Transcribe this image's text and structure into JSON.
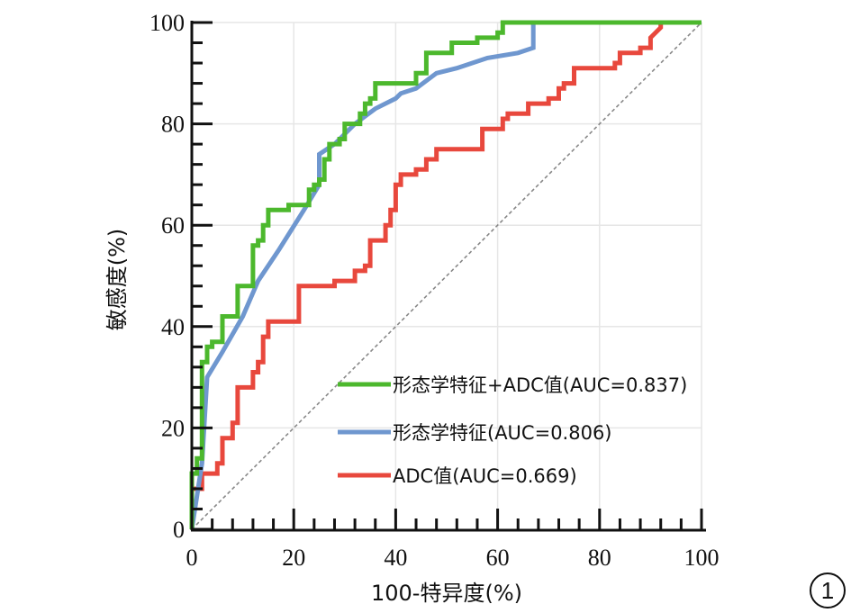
{
  "chart_data": {
    "type": "line",
    "title": "",
    "xlabel": "100-特异度(%)",
    "ylabel": "敏感度(%)",
    "xlim": [
      0,
      100
    ],
    "ylim": [
      0,
      100
    ],
    "x_ticks": [
      0,
      20,
      40,
      60,
      80,
      100
    ],
    "y_ticks": [
      0,
      20,
      40,
      60,
      80,
      100
    ],
    "x_tick_labels": [
      "0",
      "20",
      "40",
      "60",
      "80",
      "100"
    ],
    "y_tick_labels": [
      "0",
      "20",
      "40",
      "60",
      "80",
      "100"
    ],
    "grid": true,
    "legend_position": "bottom-right",
    "reference_line": {
      "name": "chance",
      "style": "dashed",
      "color": "#888888",
      "points": [
        [
          0,
          0
        ],
        [
          100,
          100
        ]
      ]
    },
    "series": [
      {
        "name": "形态学特征+ADC值(AUC=0.837)",
        "auc": 0.837,
        "color": "#4cb82d",
        "points": [
          [
            0,
            0
          ],
          [
            0,
            11
          ],
          [
            1,
            11
          ],
          [
            1,
            14
          ],
          [
            2,
            14
          ],
          [
            2,
            33
          ],
          [
            3,
            33
          ],
          [
            3,
            36
          ],
          [
            4,
            36
          ],
          [
            4,
            37
          ],
          [
            6,
            37
          ],
          [
            6,
            42
          ],
          [
            9,
            42
          ],
          [
            9,
            48
          ],
          [
            12,
            48
          ],
          [
            12,
            56
          ],
          [
            13,
            56
          ],
          [
            13,
            57
          ],
          [
            14,
            57
          ],
          [
            14,
            60
          ],
          [
            15,
            60
          ],
          [
            15,
            63
          ],
          [
            19,
            63
          ],
          [
            19,
            64
          ],
          [
            23,
            64
          ],
          [
            23,
            67
          ],
          [
            24,
            67
          ],
          [
            24,
            68
          ],
          [
            25,
            68
          ],
          [
            25,
            69
          ],
          [
            26,
            69
          ],
          [
            26,
            73
          ],
          [
            27,
            73
          ],
          [
            27,
            76
          ],
          [
            29,
            76
          ],
          [
            29,
            77
          ],
          [
            30,
            77
          ],
          [
            30,
            80
          ],
          [
            33,
            80
          ],
          [
            33,
            82
          ],
          [
            34,
            82
          ],
          [
            34,
            84
          ],
          [
            35,
            84
          ],
          [
            35,
            85
          ],
          [
            36,
            85
          ],
          [
            36,
            88
          ],
          [
            44,
            88
          ],
          [
            44,
            90
          ],
          [
            46,
            90
          ],
          [
            46,
            94
          ],
          [
            51,
            94
          ],
          [
            51,
            96
          ],
          [
            56,
            96
          ],
          [
            56,
            97
          ],
          [
            60,
            97
          ],
          [
            60,
            98
          ],
          [
            61,
            98
          ],
          [
            61,
            100
          ],
          [
            100,
            100
          ]
        ]
      },
      {
        "name": "形态学特征(AUC=0.806)",
        "auc": 0.806,
        "color": "#6f97cf",
        "points": [
          [
            0,
            0
          ],
          [
            2,
            13
          ],
          [
            3,
            30
          ],
          [
            6,
            35
          ],
          [
            10,
            42
          ],
          [
            13,
            49
          ],
          [
            17,
            55
          ],
          [
            22,
            63
          ],
          [
            25,
            68
          ],
          [
            25,
            74
          ],
          [
            28,
            76
          ],
          [
            32,
            80
          ],
          [
            36,
            83
          ],
          [
            40,
            85
          ],
          [
            41,
            86
          ],
          [
            44,
            87
          ],
          [
            48,
            90
          ],
          [
            52,
            91
          ],
          [
            58,
            93
          ],
          [
            64,
            94
          ],
          [
            67,
            95
          ],
          [
            67,
            100
          ],
          [
            100,
            100
          ]
        ]
      },
      {
        "name": "ADC值(AUC=0.669)",
        "auc": 0.669,
        "color": "#e8483d",
        "points": [
          [
            0,
            0
          ],
          [
            0,
            8
          ],
          [
            2,
            8
          ],
          [
            2,
            11
          ],
          [
            5,
            11
          ],
          [
            5,
            13
          ],
          [
            6,
            13
          ],
          [
            6,
            18
          ],
          [
            8,
            18
          ],
          [
            8,
            21
          ],
          [
            9,
            21
          ],
          [
            9,
            28
          ],
          [
            12,
            28
          ],
          [
            12,
            31
          ],
          [
            13,
            31
          ],
          [
            13,
            33
          ],
          [
            14,
            33
          ],
          [
            14,
            38
          ],
          [
            15,
            38
          ],
          [
            15,
            41
          ],
          [
            21,
            41
          ],
          [
            21,
            48
          ],
          [
            28,
            48
          ],
          [
            28,
            49
          ],
          [
            32,
            49
          ],
          [
            32,
            51
          ],
          [
            34,
            51
          ],
          [
            34,
            52
          ],
          [
            35,
            52
          ],
          [
            35,
            57
          ],
          [
            38,
            57
          ],
          [
            38,
            60
          ],
          [
            39,
            60
          ],
          [
            39,
            63
          ],
          [
            40,
            63
          ],
          [
            40,
            68
          ],
          [
            41,
            68
          ],
          [
            41,
            70
          ],
          [
            44,
            70
          ],
          [
            44,
            71
          ],
          [
            46,
            71
          ],
          [
            46,
            73
          ],
          [
            48,
            73
          ],
          [
            48,
            75
          ],
          [
            57,
            75
          ],
          [
            57,
            79
          ],
          [
            61,
            79
          ],
          [
            61,
            81
          ],
          [
            62,
            81
          ],
          [
            62,
            82
          ],
          [
            66,
            82
          ],
          [
            66,
            84
          ],
          [
            70,
            84
          ],
          [
            70,
            85
          ],
          [
            72,
            85
          ],
          [
            72,
            87
          ],
          [
            73,
            87
          ],
          [
            73,
            88
          ],
          [
            75,
            88
          ],
          [
            75,
            91
          ],
          [
            83,
            91
          ],
          [
            83,
            92
          ],
          [
            84,
            92
          ],
          [
            84,
            94
          ],
          [
            88,
            94
          ],
          [
            88,
            95
          ],
          [
            90,
            95
          ],
          [
            90,
            97
          ],
          [
            92,
            99
          ],
          [
            92,
            100
          ],
          [
            100,
            100
          ]
        ]
      }
    ],
    "figure_badge": "1"
  }
}
